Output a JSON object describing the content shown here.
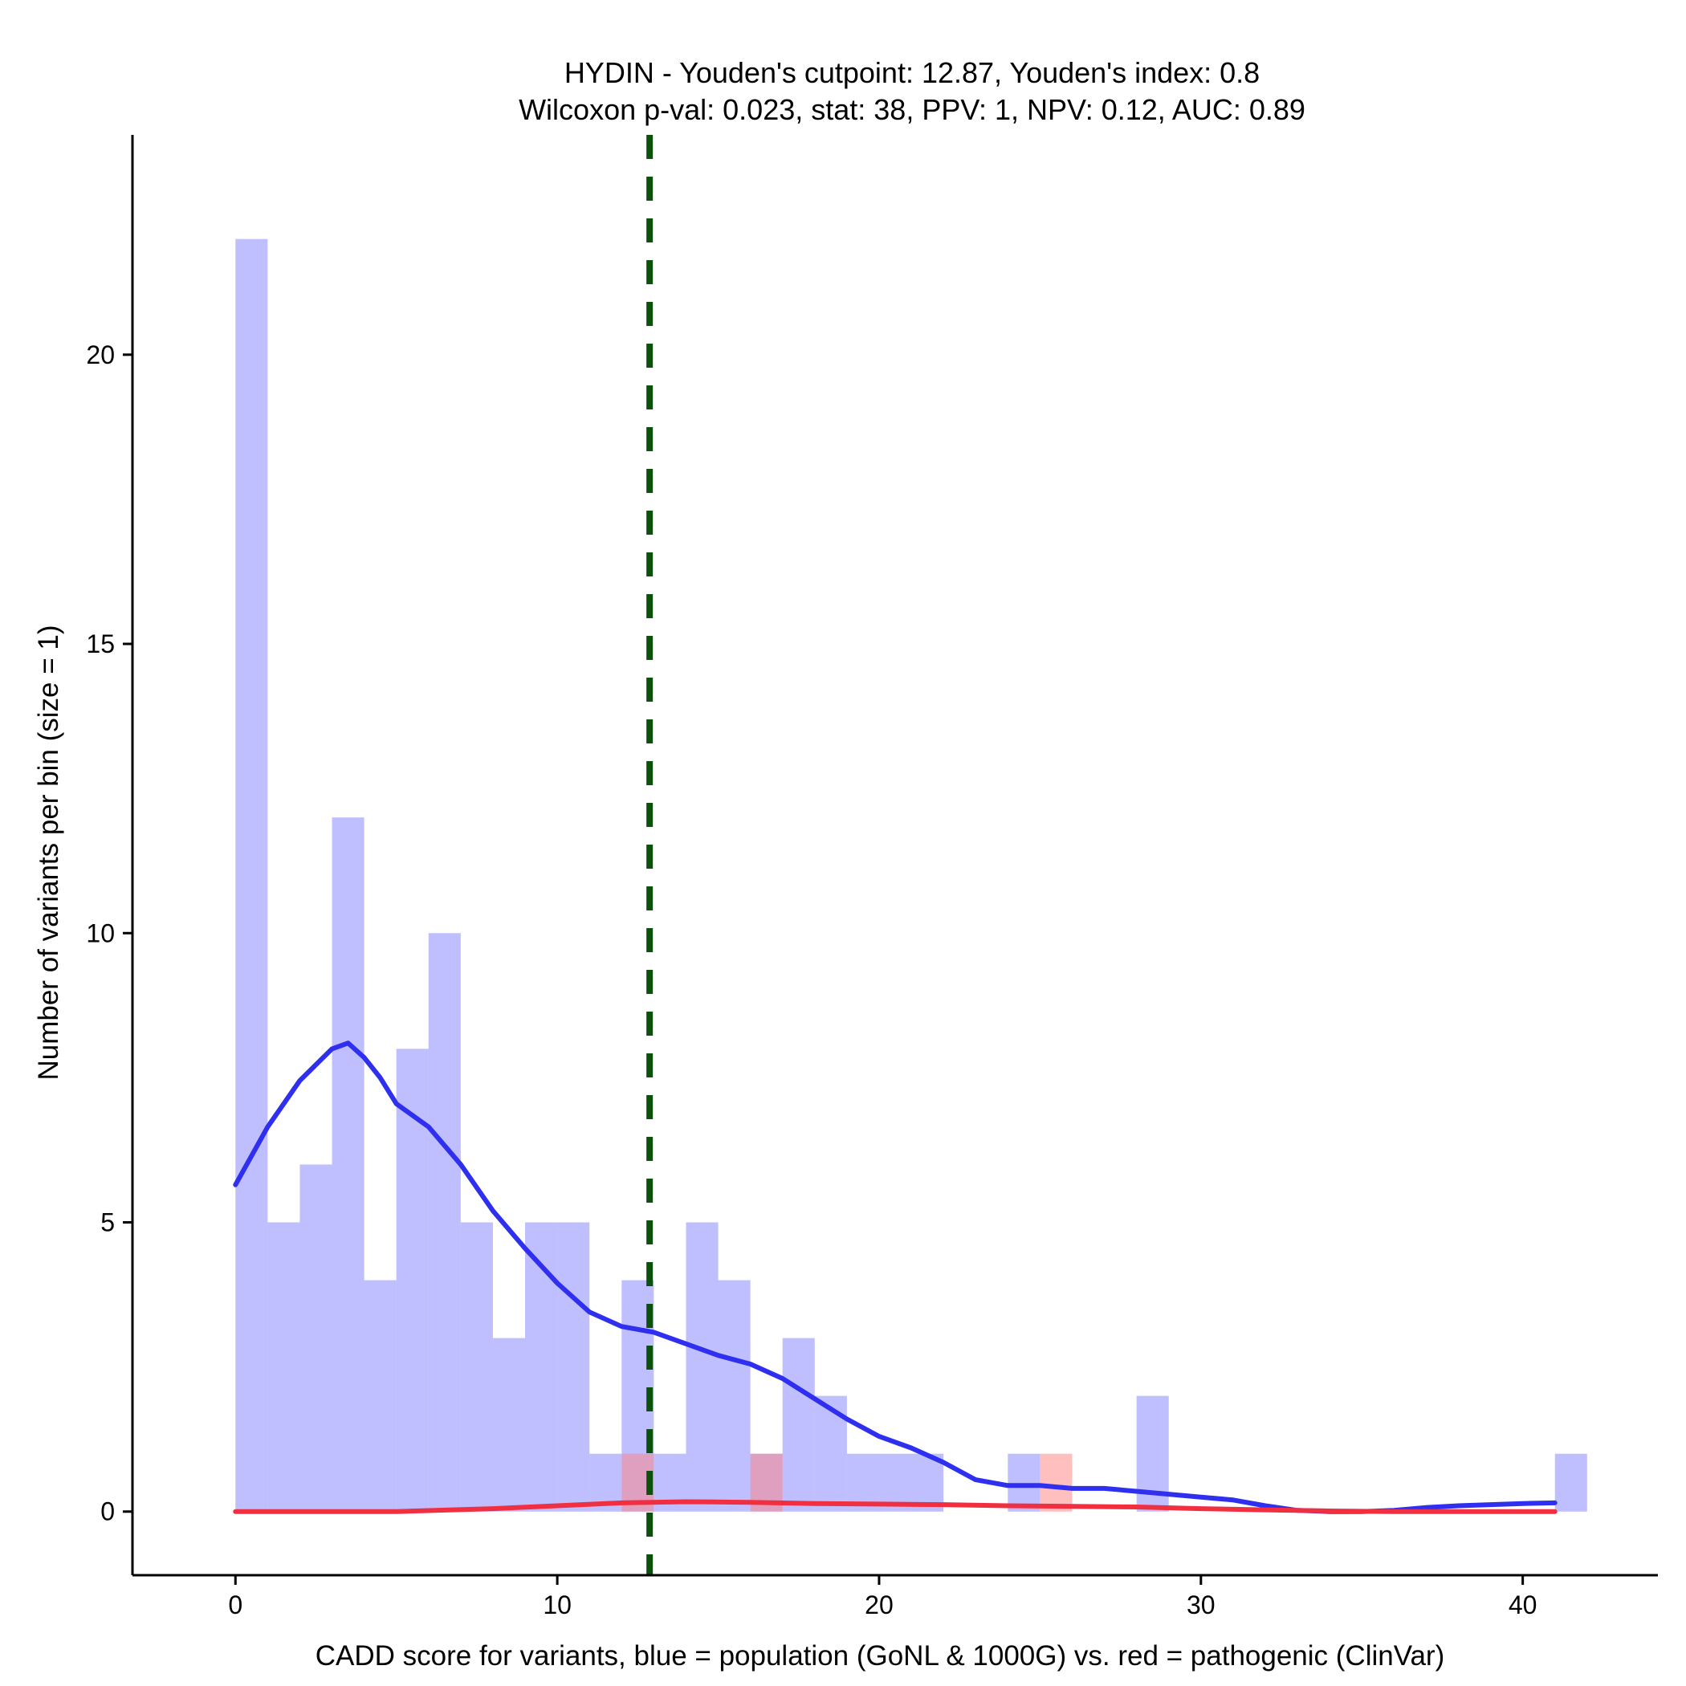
{
  "chart_data": {
    "type": "bar",
    "title": "HYDIN - Youden's cutpoint: 12.87, Youden's index: 0.8",
    "subtitle": "Wilcoxon p-val: 0.023, stat: 38, PPV: 1, NPV: 0.12, AUC: 0.89",
    "xlabel": "CADD score for variants, blue = population (GoNL & 1000G) vs. red = pathogenic (ClinVar)",
    "ylabel": "Number of variants per bin (size = 1)",
    "xlim": [
      -3.2,
      44.2
    ],
    "ylim": [
      -1.1,
      23.8
    ],
    "x_ticks": [
      0,
      10,
      20,
      30,
      40
    ],
    "y_ticks": [
      0,
      5,
      10,
      15,
      20
    ],
    "bin_width": 1,
    "grid": false,
    "legend": "none",
    "cutpoint": 12.87,
    "series": [
      {
        "color": "#8080ff",
        "bins": [
          {
            "x0": 0,
            "count": 22
          },
          {
            "x0": 1,
            "count": 5
          },
          {
            "x0": 2,
            "count": 6
          },
          {
            "x0": 3,
            "count": 12
          },
          {
            "x0": 4,
            "count": 4
          },
          {
            "x0": 5,
            "count": 8
          },
          {
            "x0": 6,
            "count": 10
          },
          {
            "x0": 7,
            "count": 5
          },
          {
            "x0": 8,
            "count": 3
          },
          {
            "x0": 9,
            "count": 5
          },
          {
            "x0": 10,
            "count": 5
          },
          {
            "x0": 11,
            "count": 1
          },
          {
            "x0": 12,
            "count": 4
          },
          {
            "x0": 13,
            "count": 1
          },
          {
            "x0": 14,
            "count": 5
          },
          {
            "x0": 15,
            "count": 4
          },
          {
            "x0": 16,
            "count": 1
          },
          {
            "x0": 17,
            "count": 3
          },
          {
            "x0": 18,
            "count": 2
          },
          {
            "x0": 19,
            "count": 1
          },
          {
            "x0": 20,
            "count": 1
          },
          {
            "x0": 21,
            "count": 1
          },
          {
            "x0": 24,
            "count": 1
          },
          {
            "x0": 28,
            "count": 2
          },
          {
            "x0": 41,
            "count": 1
          }
        ],
        "density": [
          [
            0,
            5.65
          ],
          [
            1,
            6.65
          ],
          [
            2,
            7.45
          ],
          [
            3,
            8.0
          ],
          [
            3.5,
            8.1
          ],
          [
            4,
            7.85
          ],
          [
            4.5,
            7.5
          ],
          [
            5,
            7.05
          ],
          [
            6,
            6.65
          ],
          [
            7,
            6.0
          ],
          [
            8,
            5.2
          ],
          [
            9,
            4.55
          ],
          [
            10,
            3.95
          ],
          [
            11,
            3.45
          ],
          [
            12,
            3.2
          ],
          [
            13,
            3.1
          ],
          [
            14,
            2.9
          ],
          [
            15,
            2.7
          ],
          [
            16,
            2.55
          ],
          [
            17,
            2.3
          ],
          [
            18,
            1.95
          ],
          [
            19,
            1.6
          ],
          [
            20,
            1.3
          ],
          [
            21,
            1.1
          ],
          [
            22,
            0.85
          ],
          [
            23,
            0.55
          ],
          [
            24,
            0.45
          ],
          [
            25,
            0.45
          ],
          [
            26,
            0.4
          ],
          [
            27,
            0.4
          ],
          [
            28,
            0.35
          ],
          [
            29,
            0.3
          ],
          [
            30,
            0.25
          ],
          [
            31,
            0.2
          ],
          [
            32,
            0.1
          ],
          [
            33,
            0.02
          ],
          [
            34,
            0.0
          ],
          [
            35,
            0.0
          ],
          [
            36,
            0.02
          ],
          [
            37,
            0.07
          ],
          [
            38,
            0.1
          ],
          [
            39,
            0.12
          ],
          [
            40,
            0.14
          ],
          [
            41,
            0.15
          ]
        ]
      },
      {
        "color": "#ff8080",
        "bins": [
          {
            "x0": 12,
            "count": 1
          },
          {
            "x0": 16,
            "count": 1
          },
          {
            "x0": 25,
            "count": 1
          }
        ],
        "density": [
          [
            0,
            0.0
          ],
          [
            5,
            0.0
          ],
          [
            8,
            0.05
          ],
          [
            10,
            0.1
          ],
          [
            12,
            0.15
          ],
          [
            14,
            0.17
          ],
          [
            16,
            0.16
          ],
          [
            18,
            0.14
          ],
          [
            20,
            0.13
          ],
          [
            22,
            0.12
          ],
          [
            24,
            0.1
          ],
          [
            26,
            0.09
          ],
          [
            28,
            0.08
          ],
          [
            30,
            0.05
          ],
          [
            32,
            0.03
          ],
          [
            34,
            0.01
          ],
          [
            36,
            0.0
          ],
          [
            38,
            0.0
          ],
          [
            41,
            0.0
          ]
        ]
      }
    ]
  }
}
